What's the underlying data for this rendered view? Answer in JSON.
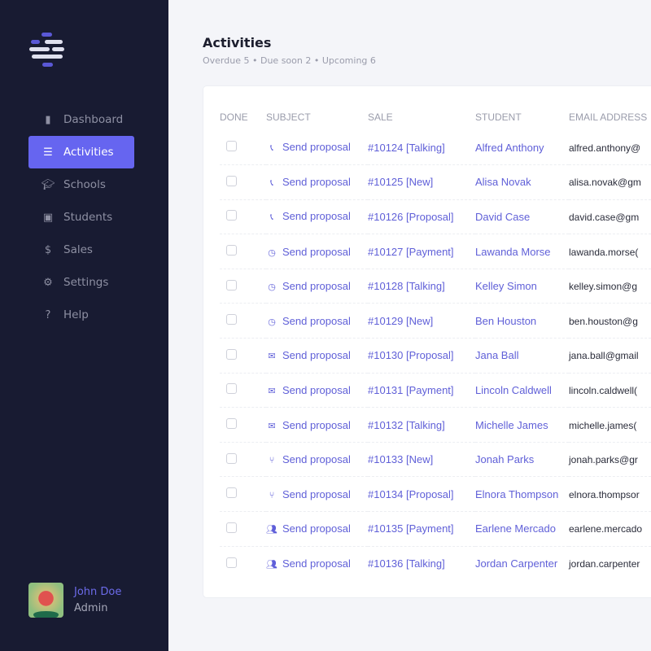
{
  "sidebar": {
    "items": [
      {
        "label": "Dashboard",
        "icon": "bar-chart-icon"
      },
      {
        "label": "Activities",
        "icon": "list-icon",
        "active": true
      },
      {
        "label": "Schools",
        "icon": "graduation-cap-icon"
      },
      {
        "label": "Students",
        "icon": "address-book-icon"
      },
      {
        "label": "Sales",
        "icon": "dollar-icon"
      },
      {
        "label": "Settings",
        "icon": "gear-icon"
      },
      {
        "label": "Help",
        "icon": "question-circle-icon"
      }
    ],
    "user": {
      "name": "John Doe",
      "role": "Admin"
    }
  },
  "header": {
    "title": "Activities",
    "stats": [
      "Overdue 5",
      "Due soon 2",
      "Upcoming 6"
    ],
    "separator": "•"
  },
  "table": {
    "columns": [
      "DONE",
      "SUBJECT",
      "SALE",
      "STUDENT",
      "EMAIL ADDRESS"
    ],
    "rows": [
      {
        "icon": "phone-icon",
        "subject": "Send proposal",
        "sale": "#10124 [Talking]",
        "student": "Alfred Anthony",
        "email": "alfred.anthony@"
      },
      {
        "icon": "phone-icon",
        "subject": "Send proposal",
        "sale": "#10125 [New]",
        "student": "Alisa Novak",
        "email": "alisa.novak@gm"
      },
      {
        "icon": "phone-icon",
        "subject": "Send proposal",
        "sale": "#10126 [Proposal]",
        "student": "David Case",
        "email": "david.case@gm"
      },
      {
        "icon": "clock-icon",
        "subject": "Send proposal",
        "sale": "#10127 [Payment]",
        "student": "Lawanda Morse",
        "email": "lawanda.morse("
      },
      {
        "icon": "clock-icon",
        "subject": "Send proposal",
        "sale": "#10128 [Talking]",
        "student": "Kelley Simon",
        "email": "kelley.simon@g"
      },
      {
        "icon": "clock-icon",
        "subject": "Send proposal",
        "sale": "#10129 [New]",
        "student": "Ben Houston",
        "email": "ben.houston@g"
      },
      {
        "icon": "envelope-icon",
        "subject": "Send proposal",
        "sale": "#10130 [Proposal]",
        "student": "Jana Ball",
        "email": "jana.ball@gmail"
      },
      {
        "icon": "envelope-icon",
        "subject": "Send proposal",
        "sale": "#10131 [Payment]",
        "student": "Lincoln Caldwell",
        "email": "lincoln.caldwell("
      },
      {
        "icon": "envelope-icon",
        "subject": "Send proposal",
        "sale": "#10132 [Talking]",
        "student": "Michelle James",
        "email": "michelle.james("
      },
      {
        "icon": "utensils-icon",
        "subject": "Send proposal",
        "sale": "#10133 [New]",
        "student": "Jonah Parks",
        "email": "jonah.parks@gr"
      },
      {
        "icon": "utensils-icon",
        "subject": "Send proposal",
        "sale": "#10134 [Proposal]",
        "student": "Elnora Thompson",
        "email": "elnora.thompsor"
      },
      {
        "icon": "users-icon",
        "subject": "Send proposal",
        "sale": "#10135 [Payment]",
        "student": "Earlene Mercado",
        "email": "earlene.mercado"
      },
      {
        "icon": "users-icon",
        "subject": "Send proposal",
        "sale": "#10136 [Talking]",
        "student": "Jordan Carpenter",
        "email": "jordan.carpenter"
      }
    ]
  },
  "colors": {
    "sidebar": "#181b32",
    "accent": "#6665f0",
    "link": "#6060d8",
    "background": "#f4f5f9"
  }
}
